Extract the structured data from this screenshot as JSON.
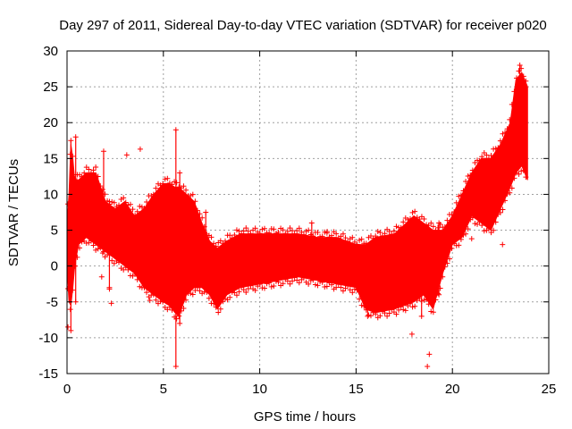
{
  "chart_data": {
    "type": "scatter",
    "title": "Day 297 of 2011, Sidereal Day-to-day VTEC variation (SDTVAR) for receiver p020",
    "xlabel": "GPS time / hours",
    "ylabel": "SDTVAR / TECUs",
    "xlim": [
      0,
      25
    ],
    "ylim": [
      -15,
      30
    ],
    "xticks": [
      0,
      5,
      10,
      15,
      20,
      25
    ],
    "yticks": [
      -15,
      -10,
      -5,
      0,
      5,
      10,
      15,
      20,
      25,
      30
    ],
    "grid": true,
    "marker": "+",
    "series_color": "#ff0000",
    "envelope": {
      "description": "approximate upper/lower extent of the dense point cloud",
      "x": [
        0.0,
        0.1,
        0.2,
        0.3,
        0.4,
        0.6,
        1.0,
        1.5,
        2.0,
        2.5,
        3.0,
        3.5,
        4.0,
        4.5,
        5.0,
        5.3,
        5.6,
        5.8,
        6.2,
        6.6,
        7.0,
        7.4,
        7.8,
        8.3,
        9.0,
        10.0,
        11.0,
        12.0,
        13.0,
        14.0,
        15.0,
        15.5,
        16.0,
        17.0,
        18.0,
        18.5,
        19.0,
        19.5,
        20.0,
        20.5,
        21.0,
        21.5,
        22.0,
        22.5,
        23.0,
        23.3,
        23.6,
        23.9
      ],
      "upper": [
        6.0,
        10.0,
        17.0,
        15.0,
        12.0,
        12.0,
        13.0,
        13.0,
        9.0,
        8.0,
        9.0,
        7.0,
        8.0,
        10.0,
        11.5,
        11.5,
        11.0,
        11.0,
        10.0,
        9.0,
        6.0,
        3.5,
        2.5,
        3.5,
        4.5,
        4.5,
        4.5,
        4.5,
        4.0,
        4.0,
        3.0,
        3.0,
        4.0,
        4.5,
        7.0,
        6.0,
        5.0,
        5.0,
        7.0,
        10.0,
        13.0,
        15.0,
        15.0,
        17.0,
        20.0,
        26.0,
        27.0,
        25.0
      ],
      "lower": [
        0.0,
        -5.0,
        -5.5,
        -3.0,
        0.0,
        3.0,
        4.0,
        3.0,
        2.0,
        1.0,
        0.0,
        -1.0,
        -3.0,
        -4.0,
        -5.0,
        -5.5,
        -6.5,
        -7.0,
        -4.0,
        -3.0,
        -3.0,
        -4.0,
        -6.0,
        -4.0,
        -3.0,
        -2.5,
        -2.0,
        -1.5,
        -2.0,
        -2.5,
        -3.0,
        -6.0,
        -6.5,
        -6.0,
        -5.0,
        -4.0,
        -6.0,
        -1.0,
        3.0,
        4.0,
        7.0,
        6.0,
        5.0,
        8.0,
        11.0,
        13.0,
        14.0,
        12.0
      ]
    },
    "spikes": [
      {
        "x": 0.2,
        "lo": -9.0,
        "hi": 17.5
      },
      {
        "x": 0.45,
        "lo": -5.0,
        "hi": 18.0
      },
      {
        "x": 1.9,
        "lo": 2.0,
        "hi": 16.0
      },
      {
        "x": 2.2,
        "lo": -3.0,
        "hi": 9.0
      },
      {
        "x": 5.65,
        "lo": -14.0,
        "hi": 19.0
      },
      {
        "x": 5.85,
        "lo": -8.0,
        "hi": 13.0
      },
      {
        "x": 7.2,
        "lo": -3.0,
        "hi": 7.5
      },
      {
        "x": 12.7,
        "lo": 3.0,
        "hi": 6.0
      },
      {
        "x": 15.6,
        "lo": -7.0,
        "hi": 1.0
      },
      {
        "x": 18.4,
        "lo": -7.0,
        "hi": 2.0
      },
      {
        "x": 19.3,
        "lo": -4.0,
        "hi": 6.0
      },
      {
        "x": 23.5,
        "lo": 16.0,
        "hi": 28.0
      }
    ],
    "outliers": {
      "x": [
        0.05,
        2.3,
        3.1,
        3.8,
        4.3,
        1.8,
        17.9,
        18.7,
        18.8,
        22.6,
        21.0,
        13.5,
        2.2
      ],
      "y": [
        -8.5,
        -5.2,
        15.5,
        16.3,
        -4.8,
        -1.5,
        -9.5,
        -14.0,
        -12.3,
        3.0,
        3.8,
        4.8,
        -3.2
      ]
    }
  }
}
